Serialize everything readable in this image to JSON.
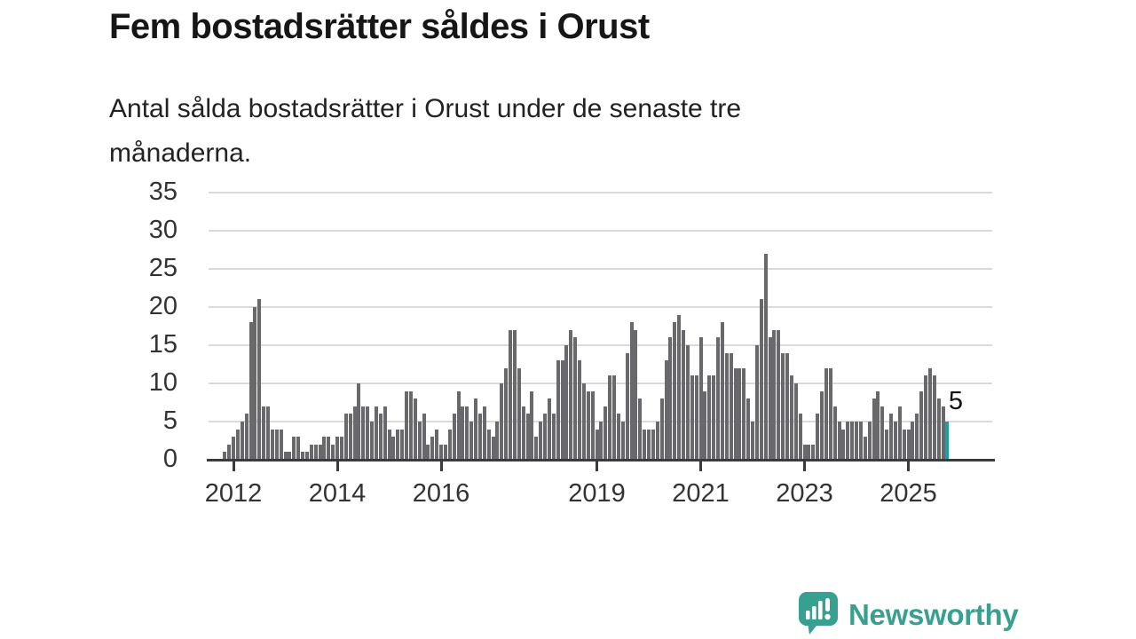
{
  "header": {
    "title": "Fem bostadsrätter såldes i Orust",
    "subtitle": "Antal sålda bostadsrätter i Orust under de senaste tre månaderna."
  },
  "chart_data": {
    "type": "bar",
    "title": "Fem bostadsrätter såldes i Orust",
    "subtitle": "Antal sålda bostadsrätter i Orust under de senaste tre månaderna.",
    "frequency": "monthly",
    "x_start": "2011-11",
    "values": [
      1,
      2,
      3,
      4,
      5,
      6,
      18,
      20,
      21,
      7,
      7,
      4,
      4,
      4,
      1,
      1,
      3,
      3,
      1,
      1,
      2,
      2,
      2,
      3,
      3,
      2,
      3,
      3,
      6,
      6,
      7,
      10,
      7,
      7,
      5,
      7,
      6,
      7,
      4,
      3,
      4,
      4,
      9,
      9,
      8,
      5,
      6,
      2,
      3,
      4,
      2,
      2,
      4,
      6,
      9,
      7,
      7,
      5,
      8,
      6,
      7,
      4,
      3,
      5,
      10,
      12,
      17,
      17,
      12,
      7,
      6,
      9,
      3,
      5,
      6,
      8,
      6,
      13,
      13,
      15,
      17,
      16,
      13,
      10,
      9,
      9,
      4,
      5,
      7,
      11,
      11,
      6,
      5,
      14,
      18,
      17,
      8,
      4,
      4,
      4,
      5,
      8,
      13,
      16,
      18,
      19,
      17,
      15,
      11,
      11,
      16,
      9,
      11,
      11,
      16,
      18,
      14,
      14,
      12,
      12,
      12,
      8,
      5,
      15,
      21,
      27,
      16,
      17,
      17,
      14,
      14,
      11,
      10,
      6,
      2,
      2,
      2,
      6,
      9,
      12,
      12,
      7,
      5,
      4,
      5,
      5,
      5,
      5,
      3,
      5,
      8,
      9,
      7,
      4,
      6,
      5,
      7,
      4,
      4,
      5,
      6,
      9,
      11,
      12,
      11,
      8,
      7,
      5
    ],
    "highlight_last_value": 5,
    "annotation": {
      "text": "5"
    },
    "yticks": [
      0,
      5,
      10,
      15,
      20,
      25,
      30,
      35
    ],
    "ylim": [
      0,
      35
    ],
    "xtick_years": [
      2012,
      2014,
      2016,
      2019,
      2021,
      2023,
      2025
    ],
    "grid": "horizontal",
    "legend": "none",
    "bar_color": "#68686d",
    "highlight_color": "#13a2a0",
    "axis_color": "#3b3b3b",
    "gridline_color": "#dadada",
    "label_color": "#333333"
  },
  "footer": {
    "brand": "Newsworthy",
    "brand_color": "#38a091"
  }
}
